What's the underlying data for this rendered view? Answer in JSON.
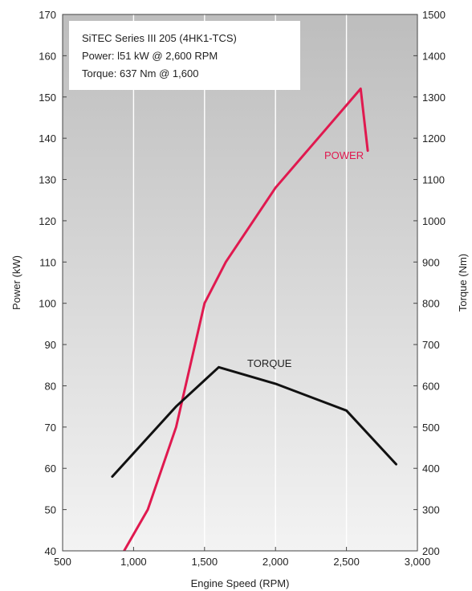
{
  "chart_data": {
    "type": "line",
    "info_box": [
      "SiTEC Series III 205 (4HK1-TCS)",
      "Power: l51 kW @ 2,600 RPM",
      "Torque: 637 Nm @ 1,600"
    ],
    "xlabel": "Engine Speed (RPM)",
    "ylabel": "Power (kW)",
    "y2label": "Torque (Nm)",
    "xlim": [
      500,
      3000
    ],
    "ylim": [
      40,
      170
    ],
    "y2lim": [
      200,
      1500
    ],
    "x_ticks": [
      500,
      1000,
      1500,
      2000,
      2500,
      3000
    ],
    "x_tick_labels": [
      "500",
      "1,000",
      "1,500",
      "2,000",
      "2,500",
      "3,000"
    ],
    "y_ticks": [
      40,
      50,
      60,
      70,
      80,
      90,
      100,
      110,
      120,
      130,
      140,
      150,
      160,
      170
    ],
    "y2_ticks": [
      200,
      300,
      400,
      500,
      600,
      700,
      800,
      900,
      1000,
      1100,
      1200,
      1300,
      1400,
      1500
    ],
    "grid": true,
    "series": [
      {
        "name": "POWER",
        "axis": "left",
        "color": "#e0194f",
        "x": [
          900,
          1100,
          1300,
          1500,
          1650,
          2000,
          2600,
          2650
        ],
        "y": [
          38,
          50,
          70,
          100,
          110,
          128,
          152,
          137
        ]
      },
      {
        "name": "TORQUE",
        "axis": "right",
        "color": "#111111",
        "x": [
          850,
          1300,
          1600,
          2000,
          2500,
          2850
        ],
        "y": [
          380,
          550,
          645,
          605,
          540,
          410
        ]
      }
    ]
  }
}
